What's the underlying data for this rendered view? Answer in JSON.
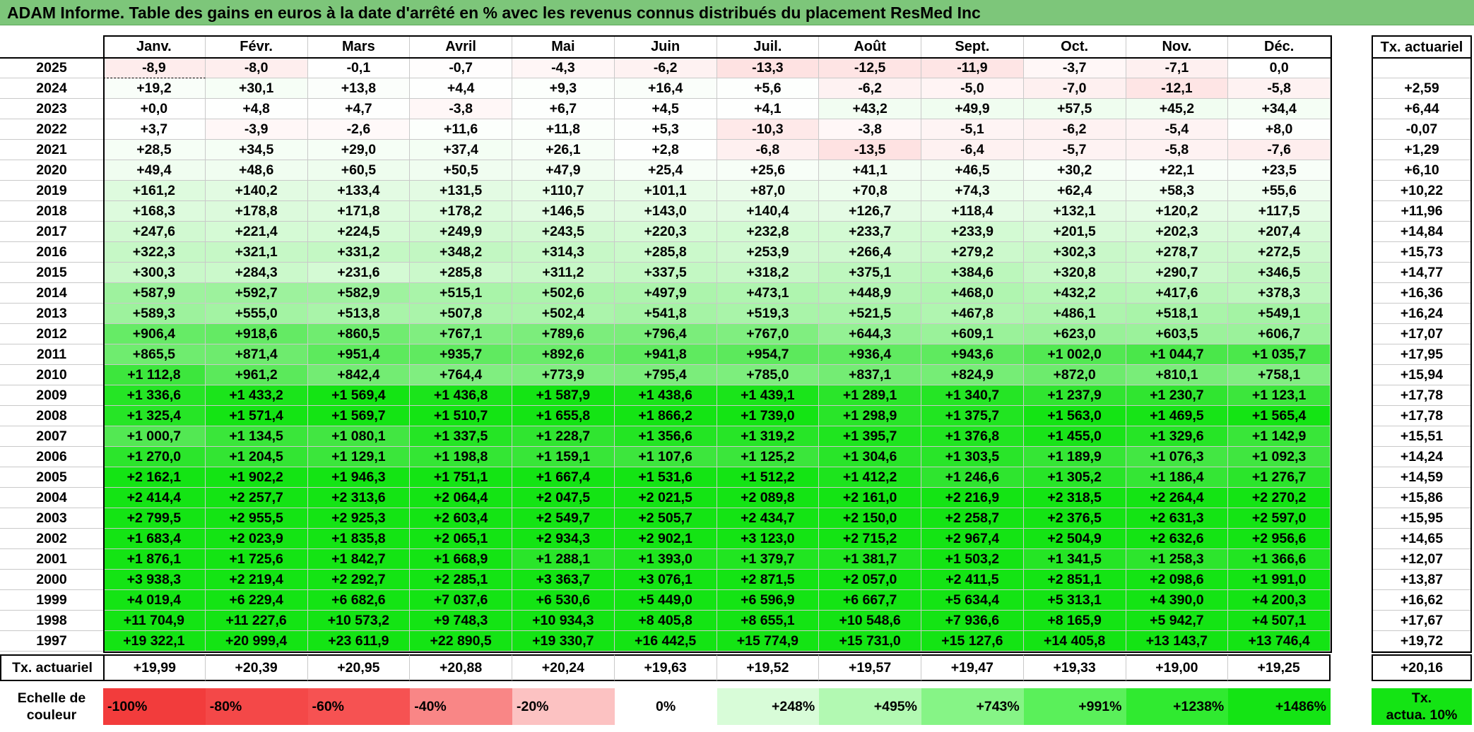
{
  "title": "ADAM Informe. Table des gains en euros à la date d'arrêté en % avec les revenus connus distribués du placement ResMed Inc",
  "months": [
    "Janv.",
    "Févr.",
    "Mars",
    "Avril",
    "Mai",
    "Juin",
    "Juil.",
    "Août",
    "Sept.",
    "Oct.",
    "Nov.",
    "Déc."
  ],
  "tx_header": "Tx. actuariel",
  "rows": [
    {
      "year": "2025",
      "values": [
        "-8,9",
        "-8,0",
        "-0,1",
        "-0,7",
        "-4,3",
        "-6,2",
        "-13,3",
        "-12,5",
        "-11,9",
        "-3,7",
        "-7,1",
        "0,0"
      ],
      "tx": ""
    },
    {
      "year": "2024",
      "values": [
        "+19,2",
        "+30,1",
        "+13,8",
        "+4,4",
        "+9,3",
        "+16,4",
        "+5,6",
        "-6,2",
        "-5,0",
        "-7,0",
        "-12,1",
        "-5,8"
      ],
      "tx": "+2,59"
    },
    {
      "year": "2023",
      "values": [
        "+0,0",
        "+4,8",
        "+4,7",
        "-3,8",
        "+6,7",
        "+4,5",
        "+4,1",
        "+43,2",
        "+49,9",
        "+57,5",
        "+45,2",
        "+34,4"
      ],
      "tx": "+6,44"
    },
    {
      "year": "2022",
      "values": [
        "+3,7",
        "-3,9",
        "-2,6",
        "+11,6",
        "+11,8",
        "+5,3",
        "-10,3",
        "-3,8",
        "-5,1",
        "-6,2",
        "-5,4",
        "+8,0"
      ],
      "tx": "-0,07"
    },
    {
      "year": "2021",
      "values": [
        "+28,5",
        "+34,5",
        "+29,0",
        "+37,4",
        "+26,1",
        "+2,8",
        "-6,8",
        "-13,5",
        "-6,4",
        "-5,7",
        "-5,8",
        "-7,6"
      ],
      "tx": "+1,29"
    },
    {
      "year": "2020",
      "values": [
        "+49,4",
        "+48,6",
        "+60,5",
        "+50,5",
        "+47,9",
        "+25,4",
        "+25,6",
        "+41,1",
        "+46,5",
        "+30,2",
        "+22,1",
        "+23,5"
      ],
      "tx": "+6,10"
    },
    {
      "year": "2019",
      "values": [
        "+161,2",
        "+140,2",
        "+133,4",
        "+131,5",
        "+110,7",
        "+101,1",
        "+87,0",
        "+70,8",
        "+74,3",
        "+62,4",
        "+58,3",
        "+55,6"
      ],
      "tx": "+10,22"
    },
    {
      "year": "2018",
      "values": [
        "+168,3",
        "+178,8",
        "+171,8",
        "+178,2",
        "+146,5",
        "+143,0",
        "+140,4",
        "+126,7",
        "+118,4",
        "+132,1",
        "+120,2",
        "+117,5"
      ],
      "tx": "+11,96"
    },
    {
      "year": "2017",
      "values": [
        "+247,6",
        "+221,4",
        "+224,5",
        "+249,9",
        "+243,5",
        "+220,3",
        "+232,8",
        "+233,7",
        "+233,9",
        "+201,5",
        "+202,3",
        "+207,4"
      ],
      "tx": "+14,84"
    },
    {
      "year": "2016",
      "values": [
        "+322,3",
        "+321,1",
        "+331,2",
        "+348,2",
        "+314,3",
        "+285,8",
        "+253,9",
        "+266,4",
        "+279,2",
        "+302,3",
        "+278,7",
        "+272,5"
      ],
      "tx": "+15,73"
    },
    {
      "year": "2015",
      "values": [
        "+300,3",
        "+284,3",
        "+231,6",
        "+285,8",
        "+311,2",
        "+337,5",
        "+318,2",
        "+375,1",
        "+384,6",
        "+320,8",
        "+290,7",
        "+346,5"
      ],
      "tx": "+14,77"
    },
    {
      "year": "2014",
      "values": [
        "+587,9",
        "+592,7",
        "+582,9",
        "+515,1",
        "+502,6",
        "+497,9",
        "+473,1",
        "+448,9",
        "+468,0",
        "+432,2",
        "+417,6",
        "+378,3"
      ],
      "tx": "+16,36"
    },
    {
      "year": "2013",
      "values": [
        "+589,3",
        "+555,0",
        "+513,8",
        "+507,8",
        "+502,4",
        "+541,8",
        "+519,3",
        "+521,5",
        "+467,8",
        "+486,1",
        "+518,1",
        "+549,1"
      ],
      "tx": "+16,24"
    },
    {
      "year": "2012",
      "values": [
        "+906,4",
        "+918,6",
        "+860,5",
        "+767,1",
        "+789,6",
        "+796,4",
        "+767,0",
        "+644,3",
        "+609,1",
        "+623,0",
        "+603,5",
        "+606,7"
      ],
      "tx": "+17,07"
    },
    {
      "year": "2011",
      "values": [
        "+865,5",
        "+871,4",
        "+951,4",
        "+935,7",
        "+892,6",
        "+941,8",
        "+954,7",
        "+936,4",
        "+943,6",
        "+1 002,0",
        "+1 044,7",
        "+1 035,7"
      ],
      "tx": "+17,95"
    },
    {
      "year": "2010",
      "values": [
        "+1 112,8",
        "+961,2",
        "+842,4",
        "+764,4",
        "+773,9",
        "+795,4",
        "+785,0",
        "+837,1",
        "+824,9",
        "+872,0",
        "+810,1",
        "+758,1"
      ],
      "tx": "+15,94"
    },
    {
      "year": "2009",
      "values": [
        "+1 336,6",
        "+1 433,2",
        "+1 569,4",
        "+1 436,8",
        "+1 587,9",
        "+1 438,6",
        "+1 439,1",
        "+1 289,1",
        "+1 340,7",
        "+1 237,9",
        "+1 230,7",
        "+1 123,1"
      ],
      "tx": "+17,78"
    },
    {
      "year": "2008",
      "values": [
        "+1 325,4",
        "+1 571,4",
        "+1 569,7",
        "+1 510,7",
        "+1 655,8",
        "+1 866,2",
        "+1 739,0",
        "+1 298,9",
        "+1 375,7",
        "+1 563,0",
        "+1 469,5",
        "+1 565,4"
      ],
      "tx": "+17,78"
    },
    {
      "year": "2007",
      "values": [
        "+1 000,7",
        "+1 134,5",
        "+1 080,1",
        "+1 337,5",
        "+1 228,7",
        "+1 356,6",
        "+1 319,2",
        "+1 395,7",
        "+1 376,8",
        "+1 455,0",
        "+1 329,6",
        "+1 142,9"
      ],
      "tx": "+15,51"
    },
    {
      "year": "2006",
      "values": [
        "+1 270,0",
        "+1 204,5",
        "+1 129,1",
        "+1 198,8",
        "+1 159,1",
        "+1 107,6",
        "+1 125,2",
        "+1 304,6",
        "+1 303,5",
        "+1 189,9",
        "+1 076,3",
        "+1 092,3"
      ],
      "tx": "+14,24"
    },
    {
      "year": "2005",
      "values": [
        "+2 162,1",
        "+1 902,2",
        "+1 946,3",
        "+1 751,1",
        "+1 667,4",
        "+1 531,6",
        "+1 512,2",
        "+1 412,2",
        "+1 246,6",
        "+1 305,2",
        "+1 186,4",
        "+1 276,7"
      ],
      "tx": "+14,59"
    },
    {
      "year": "2004",
      "values": [
        "+2 414,4",
        "+2 257,7",
        "+2 313,6",
        "+2 064,4",
        "+2 047,5",
        "+2 021,5",
        "+2 089,8",
        "+2 161,0",
        "+2 216,9",
        "+2 318,5",
        "+2 264,4",
        "+2 270,2"
      ],
      "tx": "+15,86"
    },
    {
      "year": "2003",
      "values": [
        "+2 799,5",
        "+2 955,5",
        "+2 925,3",
        "+2 603,4",
        "+2 549,7",
        "+2 505,7",
        "+2 434,7",
        "+2 150,0",
        "+2 258,7",
        "+2 376,5",
        "+2 631,3",
        "+2 597,0"
      ],
      "tx": "+15,95"
    },
    {
      "year": "2002",
      "values": [
        "+1 683,4",
        "+2 023,9",
        "+1 835,8",
        "+2 065,1",
        "+2 934,3",
        "+2 902,1",
        "+3 123,0",
        "+2 715,2",
        "+2 967,4",
        "+2 504,9",
        "+2 632,6",
        "+2 956,6"
      ],
      "tx": "+14,65"
    },
    {
      "year": "2001",
      "values": [
        "+1 876,1",
        "+1 725,6",
        "+1 842,7",
        "+1 668,9",
        "+1 288,1",
        "+1 393,0",
        "+1 379,7",
        "+1 381,7",
        "+1 503,2",
        "+1 341,5",
        "+1 258,3",
        "+1 366,6"
      ],
      "tx": "+12,07"
    },
    {
      "year": "2000",
      "values": [
        "+3 938,3",
        "+2 219,4",
        "+2 292,7",
        "+2 285,1",
        "+3 363,7",
        "+3 076,1",
        "+2 871,5",
        "+2 057,0",
        "+2 411,5",
        "+2 851,1",
        "+2 098,6",
        "+1 991,0"
      ],
      "tx": "+13,87"
    },
    {
      "year": "1999",
      "values": [
        "+4 019,4",
        "+6 229,4",
        "+6 682,6",
        "+7 037,6",
        "+6 530,6",
        "+5 449,0",
        "+6 596,9",
        "+6 667,7",
        "+5 634,4",
        "+5 313,1",
        "+4 390,0",
        "+4 200,3"
      ],
      "tx": "+16,62"
    },
    {
      "year": "1998",
      "values": [
        "+11 704,9",
        "+11 227,6",
        "+10 573,2",
        "+9 748,3",
        "+10 934,3",
        "+8 405,8",
        "+8 655,1",
        "+10 548,6",
        "+7 936,6",
        "+8 165,9",
        "+5 942,7",
        "+4 507,1"
      ],
      "tx": "+17,67"
    },
    {
      "year": "1997",
      "values": [
        "+19 322,1",
        "+20 999,4",
        "+23 611,9",
        "+22 890,5",
        "+19 330,7",
        "+16 442,5",
        "+15 774,9",
        "+15 731,0",
        "+15 127,6",
        "+14 405,8",
        "+13 143,7",
        "+13 746,4"
      ],
      "tx": "+19,72"
    }
  ],
  "summary": {
    "label": "Tx. actuariel",
    "values": [
      "+19,99",
      "+20,39",
      "+20,95",
      "+20,88",
      "+20,24",
      "+19,63",
      "+19,52",
      "+19,57",
      "+19,47",
      "+19,33",
      "+19,00",
      "+19,25"
    ],
    "total": "+20,16"
  },
  "scale": {
    "label_line1": "Echelle de",
    "label_line2": "couleur",
    "steps": [
      {
        "text": "-100%",
        "color": "#f23c3c",
        "align": "left"
      },
      {
        "text": "-80%",
        "color": "#f44848",
        "align": "left"
      },
      {
        "text": "-60%",
        "color": "#f65252",
        "align": "left"
      },
      {
        "text": "-40%",
        "color": "#f98686",
        "align": "left"
      },
      {
        "text": "-20%",
        "color": "#fcc2c2",
        "align": "left"
      },
      {
        "text": "0%",
        "color": "#ffffff",
        "align": "center"
      },
      {
        "text": "+248%",
        "color": "#d8fcd8",
        "align": "right"
      },
      {
        "text": "+495%",
        "color": "#b2f9b2",
        "align": "right"
      },
      {
        "text": "+743%",
        "color": "#86f486",
        "align": "right"
      },
      {
        "text": "+991%",
        "color": "#5af05a",
        "align": "right"
      },
      {
        "text": "+1238%",
        "color": "#30ea30",
        "align": "right"
      },
      {
        "text": "+1486%",
        "color": "#14e414",
        "align": "right"
      }
    ],
    "tx_line1": "Tx.",
    "tx_line2": "actua. 10%",
    "tx_color": "#14e414"
  },
  "colors": {
    "title_bar": "#7dc67a",
    "negative_max": "#f23c3c",
    "positive_max": "#14e414"
  }
}
